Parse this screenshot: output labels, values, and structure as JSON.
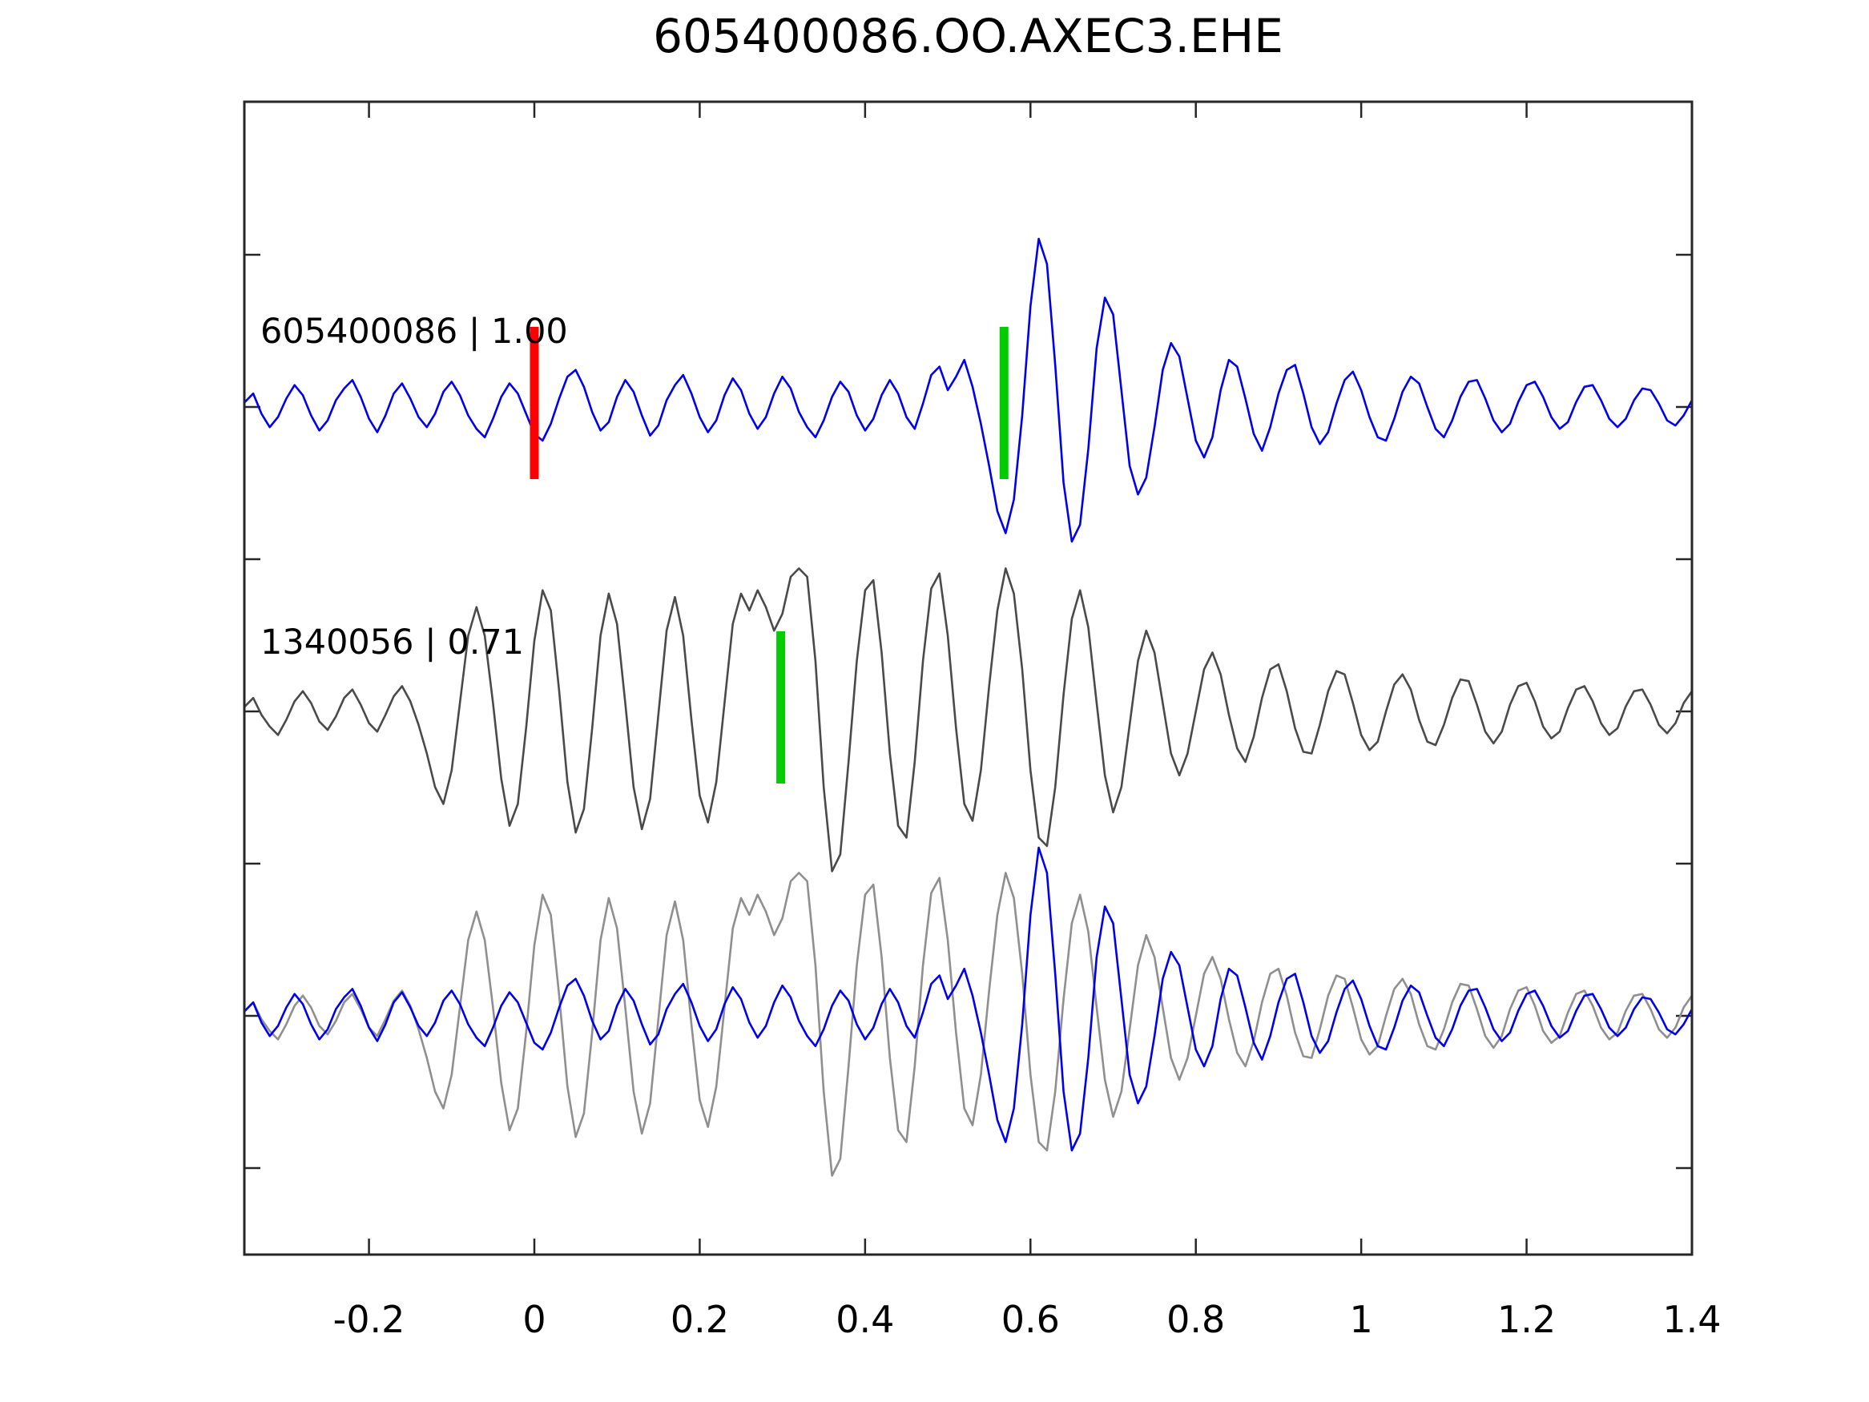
{
  "title": "605400086.OO.AXEC3.EHE",
  "colors": {
    "axis": "#262626",
    "detection_blue": "#0000ee",
    "template_dark_gray": "#4a4a4a",
    "template_light_gray": "#8f8f8f",
    "pick_red": "#ff0000",
    "pick_green": "#00cc00",
    "background": "#ffffff"
  },
  "axes": {
    "x_ticks": [
      {
        "value": -0.2,
        "label": "-0.2"
      },
      {
        "value": 0,
        "label": "0"
      },
      {
        "value": 0.2,
        "label": "0.2"
      },
      {
        "value": 0.4,
        "label": "0.4"
      },
      {
        "value": 0.6,
        "label": "0.6"
      },
      {
        "value": 0.8,
        "label": "0.8"
      },
      {
        "value": 1,
        "label": "1"
      },
      {
        "value": 1.2,
        "label": "1.2"
      },
      {
        "value": 1.4,
        "label": "1.4"
      }
    ],
    "x_visible_range": [
      -0.351,
      1.4
    ],
    "y_ticks_unlabeled": 7,
    "grid": false
  },
  "chart_data": {
    "type": "line",
    "title": "605400086.OO.AXEC3.EHE",
    "xlabel": "",
    "ylabel": "",
    "x_range": [
      -0.35,
      1.4
    ],
    "series": [
      {
        "id": "detection",
        "name": "605400086",
        "x_start": -0.35,
        "x_step": 0.01,
        "values": [
          0.03,
          0.08,
          -0.04,
          -0.12,
          -0.06,
          0.05,
          0.13,
          0.07,
          -0.05,
          -0.14,
          -0.08,
          0.04,
          0.11,
          0.16,
          0.06,
          -0.07,
          -0.15,
          -0.05,
          0.08,
          0.14,
          0.05,
          -0.06,
          -0.12,
          -0.04,
          0.09,
          0.15,
          0.07,
          -0.05,
          -0.13,
          -0.18,
          -0.07,
          0.06,
          0.14,
          0.08,
          -0.04,
          -0.16,
          -0.2,
          -0.1,
          0.05,
          0.18,
          0.22,
          0.12,
          -0.03,
          -0.14,
          -0.09,
          0.06,
          0.16,
          0.09,
          -0.05,
          -0.17,
          -0.11,
          0.04,
          0.13,
          0.19,
          0.08,
          -0.06,
          -0.15,
          -0.08,
          0.07,
          0.17,
          0.1,
          -0.04,
          -0.13,
          -0.06,
          0.08,
          0.18,
          0.11,
          -0.03,
          -0.12,
          -0.18,
          -0.08,
          0.06,
          0.15,
          0.09,
          -0.05,
          -0.14,
          -0.07,
          0.07,
          0.16,
          0.08,
          -0.06,
          -0.13,
          0.02,
          0.19,
          0.24,
          0.1,
          0.18,
          0.28,
          0.12,
          -0.1,
          -0.35,
          -0.62,
          -0.75,
          -0.55,
          -0.05,
          0.6,
          1.0,
          0.85,
          0.25,
          -0.45,
          -0.8,
          -0.7,
          -0.25,
          0.35,
          0.65,
          0.55,
          0.1,
          -0.35,
          -0.52,
          -0.42,
          -0.12,
          0.22,
          0.38,
          0.3,
          0.05,
          -0.2,
          -0.3,
          -0.18,
          0.1,
          0.28,
          0.24,
          0.05,
          -0.16,
          -0.26,
          -0.12,
          0.08,
          0.22,
          0.25,
          0.08,
          -0.12,
          -0.22,
          -0.15,
          0.02,
          0.16,
          0.21,
          0.1,
          -0.06,
          -0.18,
          -0.2,
          -0.07,
          0.09,
          0.18,
          0.14,
          0.0,
          -0.13,
          -0.18,
          -0.08,
          0.06,
          0.15,
          0.16,
          0.05,
          -0.08,
          -0.15,
          -0.1,
          0.03,
          0.13,
          0.15,
          0.06,
          -0.06,
          -0.13,
          -0.09,
          0.03,
          0.12,
          0.13,
          0.04,
          -0.07,
          -0.12,
          -0.07,
          0.04,
          0.11,
          0.1,
          0.02,
          -0.08,
          -0.11,
          -0.05,
          0.04
        ]
      },
      {
        "id": "template",
        "name": "1340056",
        "x_start": -0.35,
        "x_step": 0.01,
        "values": [
          0.03,
          0.08,
          -0.02,
          -0.09,
          -0.14,
          -0.05,
          0.06,
          0.12,
          0.05,
          -0.06,
          -0.11,
          -0.03,
          0.08,
          0.13,
          0.04,
          -0.07,
          -0.12,
          -0.02,
          0.09,
          0.15,
          0.06,
          -0.08,
          -0.25,
          -0.45,
          -0.55,
          -0.35,
          0.05,
          0.45,
          0.62,
          0.45,
          0.05,
          -0.4,
          -0.68,
          -0.55,
          -0.1,
          0.42,
          0.72,
          0.6,
          0.12,
          -0.42,
          -0.72,
          -0.58,
          -0.1,
          0.45,
          0.7,
          0.52,
          0.05,
          -0.45,
          -0.7,
          -0.52,
          -0.02,
          0.48,
          0.68,
          0.45,
          -0.05,
          -0.5,
          -0.66,
          -0.42,
          0.05,
          0.52,
          0.7,
          0.6,
          0.72,
          0.62,
          0.48,
          0.58,
          0.8,
          0.85,
          0.8,
          0.3,
          -0.45,
          -0.95,
          -0.85,
          -0.3,
          0.3,
          0.72,
          0.78,
          0.35,
          -0.25,
          -0.68,
          -0.75,
          -0.3,
          0.3,
          0.73,
          0.82,
          0.45,
          -0.1,
          -0.55,
          -0.65,
          -0.35,
          0.15,
          0.6,
          0.85,
          0.7,
          0.25,
          -0.35,
          -0.75,
          -0.8,
          -0.45,
          0.1,
          0.55,
          0.72,
          0.5,
          0.05,
          -0.38,
          -0.6,
          -0.45,
          -0.08,
          0.3,
          0.48,
          0.35,
          0.05,
          -0.25,
          -0.38,
          -0.25,
          0.0,
          0.25,
          0.35,
          0.22,
          -0.02,
          -0.22,
          -0.3,
          -0.15,
          0.08,
          0.25,
          0.28,
          0.12,
          -0.1,
          -0.24,
          -0.25,
          -0.08,
          0.12,
          0.24,
          0.22,
          0.05,
          -0.14,
          -0.23,
          -0.18,
          0.0,
          0.16,
          0.22,
          0.13,
          -0.05,
          -0.18,
          -0.2,
          -0.08,
          0.08,
          0.19,
          0.18,
          0.04,
          -0.12,
          -0.19,
          -0.12,
          0.04,
          0.15,
          0.17,
          0.06,
          -0.09,
          -0.16,
          -0.12,
          0.02,
          0.13,
          0.15,
          0.06,
          -0.07,
          -0.14,
          -0.1,
          0.03,
          0.12,
          0.13,
          0.04,
          -0.08,
          -0.13,
          -0.07,
          0.05,
          0.12
        ]
      }
    ],
    "rows": [
      {
        "label": "605400086 | 1.00",
        "traces": [
          {
            "series": "detection",
            "color_key": "detection_blue"
          }
        ],
        "picks": [
          {
            "x": 0.0,
            "color_key": "pick_red"
          },
          {
            "x": 0.568,
            "color_key": "pick_green"
          }
        ]
      },
      {
        "label": "1340056 | 0.71",
        "traces": [
          {
            "series": "template",
            "color_key": "template_dark_gray"
          }
        ],
        "picks": [
          {
            "x": 0.298,
            "color_key": "pick_green"
          }
        ]
      },
      {
        "label": "",
        "traces": [
          {
            "series": "template",
            "color_key": "template_light_gray"
          },
          {
            "series": "detection",
            "color_key": "detection_blue"
          }
        ],
        "picks": []
      }
    ]
  }
}
